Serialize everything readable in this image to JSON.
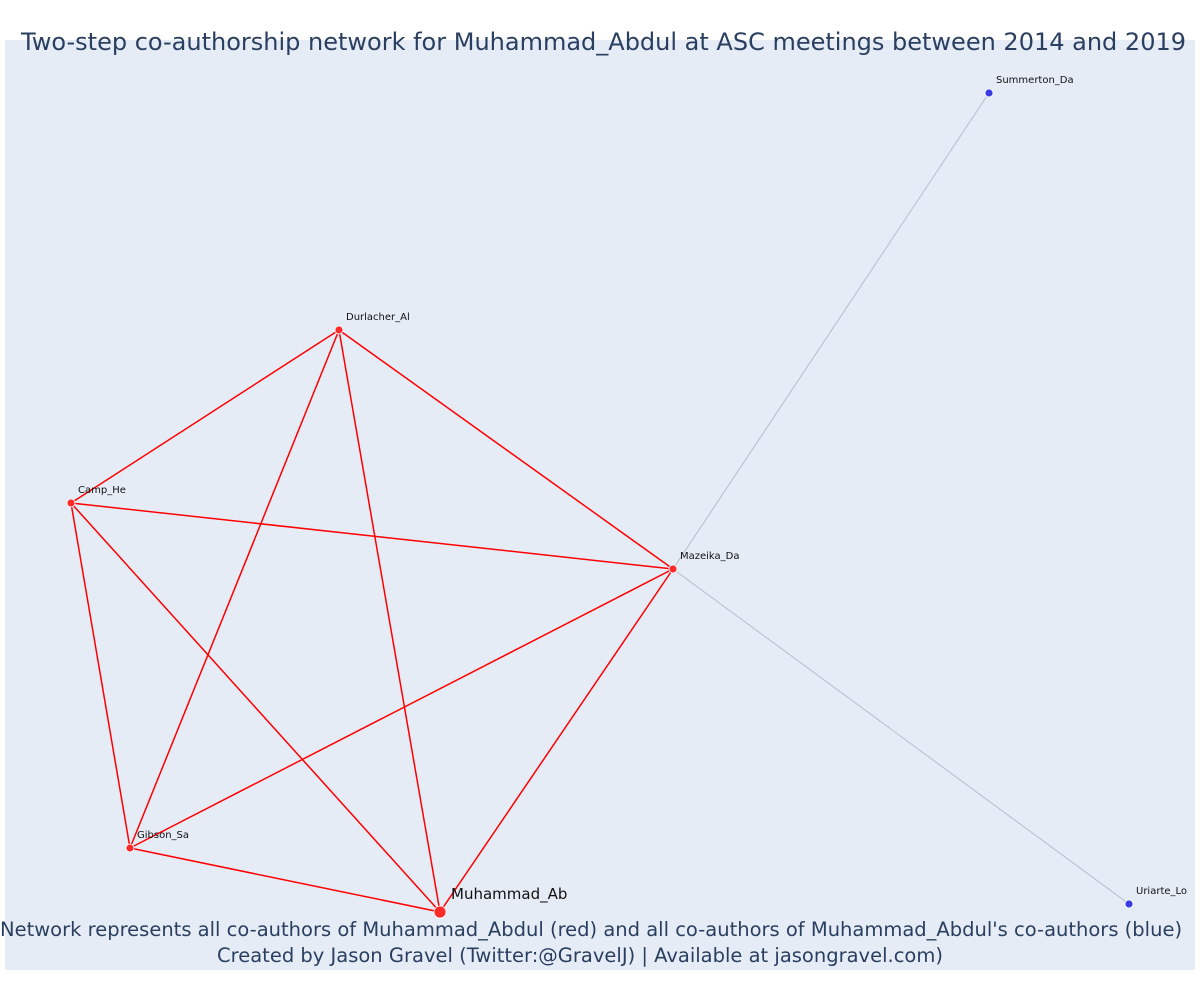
{
  "title": "Two-step co-authorship network for Muhammad_Abdul at ASC meetings between 2014 and 2019",
  "caption_line1": "Network represents all co-authors of Muhammad_Abdul (red) and all co-authors of Muhammad_Abdul's co-authors (blue)",
  "caption_line2": "Created by Jason Gravel (Twitter:@GravelJ) | Available at jasongravel.com)",
  "colors": {
    "background": "#e5ecf6",
    "coauthor": "#ff2a2a",
    "second_step": "#3a3ae6",
    "coauthor_edge": "#ff0000",
    "second_step_edge": "#b8bccd",
    "text": "#2a3f5f"
  },
  "nodes": [
    {
      "id": "Muhammad_Ab",
      "label": "Muhammad_Ab",
      "group": "coauthor",
      "focal": true
    },
    {
      "id": "Durlacher_Al",
      "label": "Durlacher_Al",
      "group": "coauthor"
    },
    {
      "id": "Camp_He",
      "label": "Camp_He",
      "group": "coauthor"
    },
    {
      "id": "Mazeika_Da",
      "label": "Mazeika_Da",
      "group": "coauthor"
    },
    {
      "id": "Gibson_Sa",
      "label": "Gibson_Sa",
      "group": "coauthor"
    },
    {
      "id": "Summerton_Da",
      "label": "Summerton_Da",
      "group": "second_step"
    },
    {
      "id": "Uriarte_Lo",
      "label": "Uriarte_Lo",
      "group": "second_step"
    }
  ],
  "edges": [
    {
      "source": "Durlacher_Al",
      "target": "Camp_He",
      "group": "coauthor"
    },
    {
      "source": "Durlacher_Al",
      "target": "Mazeika_Da",
      "group": "coauthor"
    },
    {
      "source": "Durlacher_Al",
      "target": "Gibson_Sa",
      "group": "coauthor"
    },
    {
      "source": "Durlacher_Al",
      "target": "Muhammad_Ab",
      "group": "coauthor"
    },
    {
      "source": "Camp_He",
      "target": "Mazeika_Da",
      "group": "coauthor"
    },
    {
      "source": "Camp_He",
      "target": "Gibson_Sa",
      "group": "coauthor"
    },
    {
      "source": "Camp_He",
      "target": "Muhammad_Ab",
      "group": "coauthor"
    },
    {
      "source": "Mazeika_Da",
      "target": "Gibson_Sa",
      "group": "coauthor"
    },
    {
      "source": "Mazeika_Da",
      "target": "Muhammad_Ab",
      "group": "coauthor"
    },
    {
      "source": "Gibson_Sa",
      "target": "Muhammad_Ab",
      "group": "coauthor"
    },
    {
      "source": "Mazeika_Da",
      "target": "Summerton_Da",
      "group": "second_step"
    },
    {
      "source": "Mazeika_Da",
      "target": "Uriarte_Lo",
      "group": "second_step"
    }
  ]
}
